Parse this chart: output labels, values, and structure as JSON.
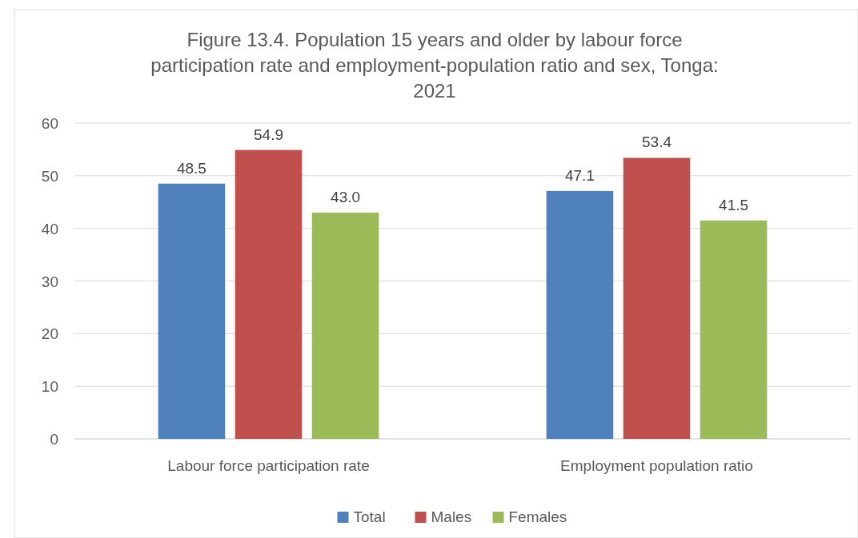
{
  "chart_data": {
    "type": "bar",
    "title": "Figure 13.4. Population 15 years and older by labour force participation rate and employment-population ratio and sex, Tonga: 2021",
    "categories": [
      "Labour force participation rate",
      "Employment population ratio"
    ],
    "series": [
      {
        "name": "Total",
        "color": "#4f81bd",
        "values": [
          48.5,
          47.1
        ]
      },
      {
        "name": "Males",
        "color": "#c0504d",
        "values": [
          54.9,
          53.4
        ]
      },
      {
        "name": "Females",
        "color": "#9bbb59",
        "values": [
          43.0,
          41.5
        ]
      }
    ],
    "value_labels": [
      [
        "48.5",
        "47.1"
      ],
      [
        "54.9",
        "53.4"
      ],
      [
        "43.0",
        "41.5"
      ]
    ],
    "ylim": [
      0,
      60
    ],
    "yticks": [
      0,
      10,
      20,
      30,
      40,
      50,
      60
    ],
    "grid": "y",
    "legend": "bottom"
  }
}
